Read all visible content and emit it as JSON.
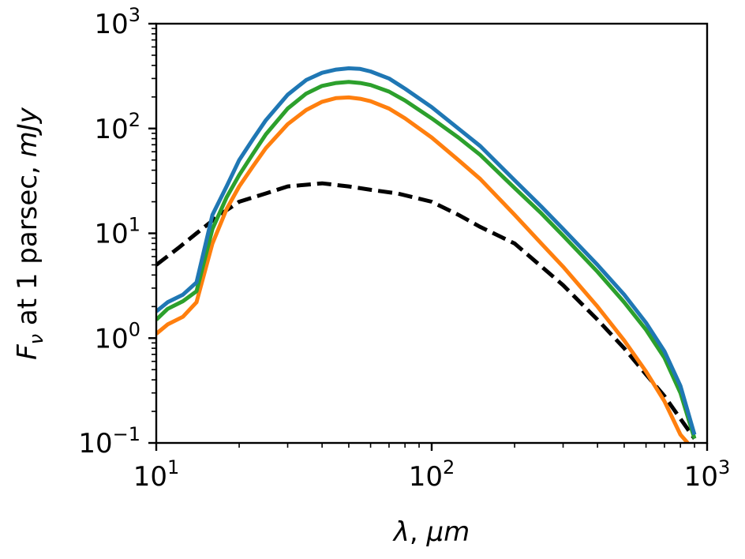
{
  "chart_data": {
    "type": "line",
    "title": "",
    "xscale": "log",
    "yscale": "log",
    "xlim": [
      10,
      1000
    ],
    "ylim": [
      0.1,
      1000
    ],
    "xlabel": {
      "var": "λ",
      "sep": ", ",
      "unit": "μm"
    },
    "ylabel": {
      "var": "F",
      "sub": "ν",
      "text": " at 1 parsec, ",
      "unit": "mJy"
    },
    "x_ticks": [
      {
        "value": 10,
        "base": "10",
        "exp": "1"
      },
      {
        "value": 100,
        "base": "10",
        "exp": "2"
      },
      {
        "value": 1000,
        "base": "10",
        "exp": "3"
      }
    ],
    "y_ticks": [
      {
        "value": 0.1,
        "base": "10",
        "exp": "−1"
      },
      {
        "value": 1,
        "base": "10",
        "exp": "0"
      },
      {
        "value": 10,
        "base": "10",
        "exp": "1"
      },
      {
        "value": 100,
        "base": "10",
        "exp": "2"
      },
      {
        "value": 1000,
        "base": "10",
        "exp": "3"
      }
    ],
    "series": [
      {
        "name": "blue",
        "color": "#1f77b4",
        "dash": "solid",
        "x": [
          10,
          11,
          12.5,
          14,
          16,
          18,
          20,
          22.5,
          25,
          30,
          35,
          40,
          45,
          50,
          55,
          60,
          70,
          80,
          100,
          125,
          150,
          200,
          250,
          300,
          400,
          500,
          600,
          700,
          800,
          900
        ],
        "y": [
          1.8,
          2.2,
          2.6,
          3.4,
          15,
          28,
          50,
          80,
          120,
          210,
          290,
          340,
          365,
          375,
          370,
          350,
          300,
          240,
          160,
          100,
          68,
          32,
          18,
          11,
          5,
          2.6,
          1.4,
          0.75,
          0.35,
          0.12
        ]
      },
      {
        "name": "green",
        "color": "#2ca02c",
        "dash": "solid",
        "x": [
          10,
          11,
          12.5,
          14,
          16,
          18,
          20,
          22.5,
          25,
          30,
          35,
          40,
          45,
          50,
          55,
          60,
          70,
          80,
          100,
          125,
          150,
          200,
          250,
          300,
          400,
          500,
          600,
          700,
          800,
          900
        ],
        "y": [
          1.5,
          1.9,
          2.25,
          2.8,
          11,
          22,
          36,
          58,
          88,
          155,
          215,
          255,
          272,
          278,
          272,
          260,
          225,
          185,
          125,
          82,
          56,
          27,
          15.5,
          9.5,
          4.3,
          2.2,
          1.2,
          0.65,
          0.3,
          0.11
        ]
      },
      {
        "name": "orange",
        "color": "#ff7f0e",
        "dash": "solid",
        "x": [
          10,
          11,
          12.5,
          14,
          16,
          18,
          20,
          22.5,
          25,
          30,
          35,
          40,
          45,
          50,
          55,
          60,
          70,
          80,
          100,
          125,
          150,
          200,
          250,
          300,
          400,
          500,
          600,
          700,
          800,
          850
        ],
        "y": [
          1.1,
          1.35,
          1.6,
          2.2,
          8,
          17,
          28,
          44,
          65,
          110,
          150,
          180,
          195,
          198,
          192,
          182,
          155,
          125,
          82,
          50,
          33,
          15,
          8,
          4.8,
          2,
          0.95,
          0.48,
          0.25,
          0.12,
          0.1
        ]
      },
      {
        "name": "dashed",
        "color": "#000000",
        "dash": "dashed",
        "x": [
          10,
          12,
          14,
          17,
          20,
          25,
          30,
          40,
          50,
          60,
          75,
          100,
          125,
          150,
          200,
          300,
          400,
          500,
          600,
          700,
          800,
          900
        ],
        "y": [
          5,
          7.2,
          10,
          15,
          20,
          24,
          28,
          30,
          28,
          26,
          24,
          20,
          15,
          11.5,
          8,
          3.2,
          1.5,
          0.8,
          0.45,
          0.28,
          0.17,
          0.11
        ]
      }
    ]
  }
}
